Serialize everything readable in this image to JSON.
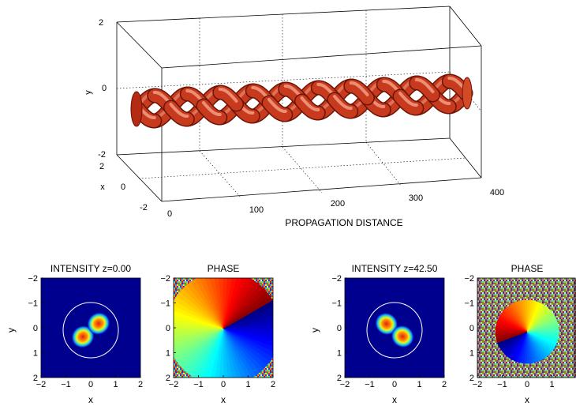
{
  "chart_data": [
    {
      "type": "surface3d",
      "xlabel": "PROPAGATION DISTANCE",
      "ylabel": "y",
      "zlabel": "x",
      "xlim": [
        0,
        400
      ],
      "ylim": [
        -2,
        2
      ],
      "zlim": [
        -2,
        2
      ],
      "xticks": [
        "0",
        "100",
        "200",
        "300",
        "400"
      ],
      "yticks": [
        "-2",
        "0",
        "2"
      ],
      "zticks": [
        "-2",
        "0",
        "2"
      ],
      "grid": true,
      "surface_color": "#c83a1e",
      "description_series": [
        {
          "helix_turns": 5,
          "strands": 2
        }
      ]
    },
    {
      "type": "heatmap",
      "title": "INTENSITY z=0.00",
      "xlabel": "x",
      "ylabel": "y",
      "xticks": [
        "-2",
        "-1",
        "0",
        "1",
        "2"
      ],
      "yticks": [
        "-2",
        "-1",
        "0",
        "1",
        "2"
      ],
      "lobe_orientation": "left-low / right-high"
    },
    {
      "type": "heatmap",
      "title": "PHASE",
      "xlabel": "x",
      "ylabel": "",
      "xticks": [
        "-2",
        "-1",
        "0",
        "1",
        "2"
      ],
      "yticks": [
        "-2",
        "-1",
        "0",
        "1",
        "2"
      ]
    },
    {
      "type": "heatmap",
      "title": "INTENSITY z=42.50",
      "xlabel": "x",
      "ylabel": "y",
      "xticks": [
        "-2",
        "-1",
        "0",
        "1",
        "2"
      ],
      "yticks": [
        "-2",
        "-1",
        "0",
        "1",
        "2"
      ],
      "lobe_orientation": "left-high / right-low"
    },
    {
      "type": "heatmap",
      "title": "PHASE",
      "xlabel": "x",
      "ylabel": "",
      "xticks": [
        "-2",
        "-1",
        "0",
        "1"
      ],
      "yticks": [
        "-2",
        "-1",
        "0",
        "1",
        "2"
      ]
    }
  ],
  "colors": {
    "jet_background": "#00008f",
    "lobe_red": "#e0201a",
    "helix": "#c83a1e"
  }
}
